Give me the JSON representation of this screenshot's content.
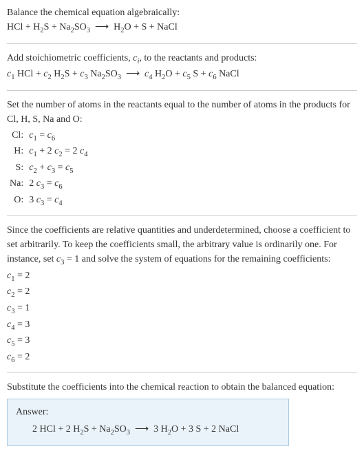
{
  "colors": {
    "text": "#333333",
    "rule": "#cccccc",
    "box_border": "#a8c8e0",
    "box_bg": "#eaf3fa"
  },
  "typography": {
    "body_fontsize": 14,
    "sub_scale": 0.75,
    "line_height": 1.5
  },
  "intro": {
    "line1": "Balance the chemical equation algebraically:",
    "eq_lhs_parts": [
      "HCl + H",
      "2",
      "S + Na",
      "2",
      "SO",
      "3"
    ],
    "arrow": "⟶",
    "eq_rhs_parts": [
      "H",
      "2",
      "O + S + NaCl"
    ]
  },
  "stoich": {
    "line1_a": "Add stoichiometric coefficients, ",
    "line1_ci": "c",
    "line1_ci_sub": "i",
    "line1_b": ", to the reactants and products:"
  },
  "stoich_eq": {
    "c": [
      "c",
      "c",
      "c",
      "c",
      "c",
      "c"
    ],
    "csub": [
      "1",
      "2",
      "3",
      "4",
      "5",
      "6"
    ],
    "sp": [
      "HCl",
      "H",
      "S",
      "Na",
      "SO",
      "H",
      "O",
      "S",
      "NaCl"
    ],
    "spsub": [
      "",
      "2",
      "",
      "2",
      "3",
      "2",
      "",
      "",
      ""
    ],
    "arrow": "⟶"
  },
  "atoms": {
    "intro": "Set the number of atoms in the reactants equal to the number of atoms in the products for Cl, H, S, Na and O:",
    "rows": [
      {
        "lbl": "Cl:",
        "eq_parts": [
          [
            "c",
            "1"
          ],
          " = ",
          [
            "c",
            "6"
          ]
        ]
      },
      {
        "lbl": "H:",
        "eq_parts": [
          [
            "c",
            "1"
          ],
          " + 2 ",
          [
            "c",
            "2"
          ],
          " = 2 ",
          [
            "c",
            "4"
          ]
        ]
      },
      {
        "lbl": "S:",
        "eq_parts": [
          [
            "c",
            "2"
          ],
          " + ",
          [
            "c",
            "3"
          ],
          " = ",
          [
            "c",
            "5"
          ]
        ]
      },
      {
        "lbl": "Na:",
        "eq_parts": [
          "2 ",
          [
            "c",
            "3"
          ],
          " = ",
          [
            "c",
            "6"
          ]
        ]
      },
      {
        "lbl": "O:",
        "eq_parts": [
          "3 ",
          [
            "c",
            "3"
          ],
          " = ",
          [
            "c",
            "4"
          ]
        ]
      }
    ]
  },
  "choose": {
    "text_a": "Since the coefficients are relative quantities and underdetermined, choose a coefficient to set arbitrarily. To keep the coefficients small, the arbitrary value is ordinarily one. For instance, set ",
    "c": "c",
    "csub": "3",
    "text_b": " = 1 and solve the system of equations for the remaining coefficients:"
  },
  "coeffs": [
    {
      "c": "c",
      "sub": "1",
      "val": " = 2"
    },
    {
      "c": "c",
      "sub": "2",
      "val": " = 2"
    },
    {
      "c": "c",
      "sub": "3",
      "val": " = 1"
    },
    {
      "c": "c",
      "sub": "4",
      "val": " = 3"
    },
    {
      "c": "c",
      "sub": "5",
      "val": " = 3"
    },
    {
      "c": "c",
      "sub": "6",
      "val": " = 2"
    }
  ],
  "subst": {
    "text": "Substitute the coefficients into the chemical reaction to obtain the balanced equation:"
  },
  "answer": {
    "label": "Answer:",
    "eq": {
      "l": [
        "2 HCl + 2 H",
        "2",
        "S + Na",
        "2",
        "SO",
        "3"
      ],
      "arrow": "⟶",
      "r": [
        "3 H",
        "2",
        "O + 3 S + 2 NaCl"
      ]
    }
  }
}
